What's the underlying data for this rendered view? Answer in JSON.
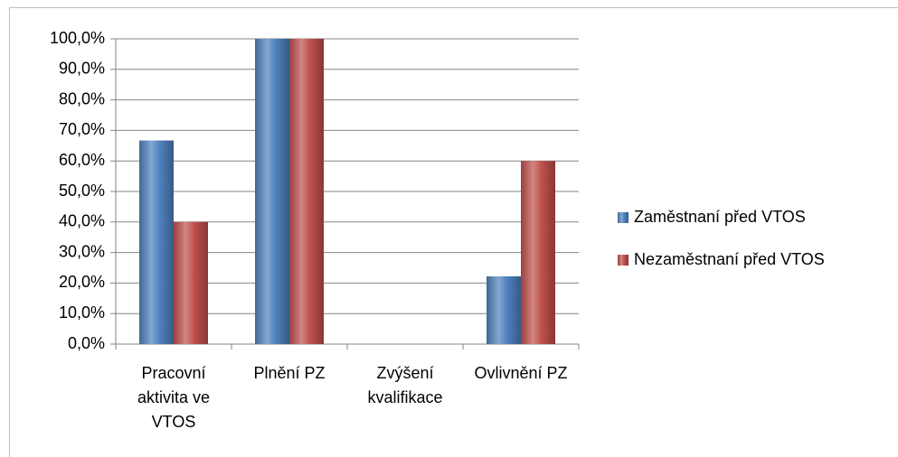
{
  "chart_data": {
    "type": "bar",
    "categories": [
      "Pracovní aktivita ve VTOS",
      "Plnění PZ",
      "Zvýšení kvalifikace",
      "Ovlivnění PZ"
    ],
    "series": [
      {
        "name": "Zaměstnaní před VTOS",
        "color": "#4f81bd",
        "values": [
          66.7,
          100,
          0,
          22.2
        ]
      },
      {
        "name": "Nezaměstnaní před VTOS",
        "color": "#c0504d",
        "values": [
          40,
          100,
          0,
          60
        ]
      }
    ],
    "ylim": [
      0,
      100
    ],
    "yticks": [
      {
        "value": 0,
        "label": "0,0%"
      },
      {
        "value": 10,
        "label": "10,0%"
      },
      {
        "value": 20,
        "label": "20,0%"
      },
      {
        "value": 30,
        "label": "30,0%"
      },
      {
        "value": 40,
        "label": "40,0%"
      },
      {
        "value": 50,
        "label": "50,0%"
      },
      {
        "value": 60,
        "label": "60,0%"
      },
      {
        "value": 70,
        "label": "70,0%"
      },
      {
        "value": 80,
        "label": "80,0%"
      },
      {
        "value": 90,
        "label": "90,0%"
      },
      {
        "value": 100,
        "label": "100,0%"
      }
    ],
    "grid": true,
    "legend": "right"
  }
}
